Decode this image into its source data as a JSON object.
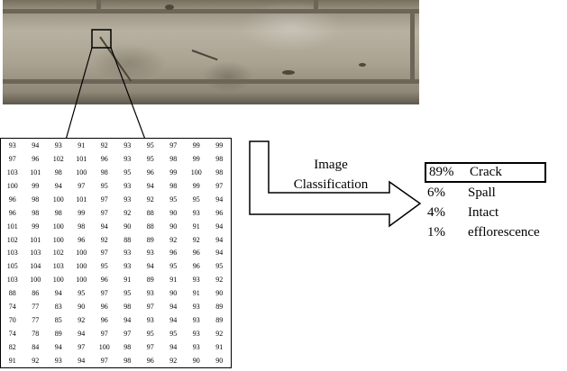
{
  "diagram": {
    "arrow_label": [
      "Image",
      "Classification"
    ],
    "results": [
      {
        "percent": "89%",
        "label": "Crack",
        "highlighted": true
      },
      {
        "percent": "6%",
        "label": "Spall",
        "highlighted": false
      },
      {
        "percent": "4%",
        "label": "Intact",
        "highlighted": false
      },
      {
        "percent": "1%",
        "label": "efflorescence",
        "highlighted": false
      }
    ],
    "pixel_grid": [
      [
        93,
        94,
        93,
        91,
        92,
        93,
        95,
        97,
        99,
        99
      ],
      [
        97,
        96,
        102,
        101,
        96,
        93,
        95,
        98,
        99,
        98
      ],
      [
        103,
        101,
        98,
        100,
        98,
        95,
        96,
        99,
        100,
        98
      ],
      [
        100,
        99,
        94,
        97,
        95,
        93,
        94,
        98,
        99,
        97
      ],
      [
        96,
        98,
        100,
        101,
        97,
        93,
        92,
        95,
        95,
        94
      ],
      [
        96,
        98,
        98,
        99,
        97,
        92,
        88,
        90,
        93,
        96
      ],
      [
        101,
        99,
        100,
        98,
        94,
        90,
        88,
        90,
        91,
        94
      ],
      [
        102,
        101,
        100,
        96,
        92,
        88,
        89,
        92,
        92,
        94
      ],
      [
        103,
        103,
        102,
        100,
        97,
        93,
        93,
        96,
        96,
        94
      ],
      [
        105,
        104,
        103,
        100,
        95,
        93,
        94,
        95,
        96,
        95
      ],
      [
        103,
        100,
        100,
        100,
        96,
        91,
        89,
        91,
        93,
        92
      ],
      [
        88,
        86,
        94,
        95,
        97,
        95,
        93,
        90,
        91,
        90
      ],
      [
        74,
        77,
        83,
        90,
        96,
        98,
        97,
        94,
        93,
        89
      ],
      [
        70,
        77,
        85,
        92,
        96,
        94,
        93,
        94,
        93,
        89
      ],
      [
        74,
        78,
        89,
        94,
        97,
        97,
        95,
        95,
        93,
        92
      ],
      [
        82,
        84,
        94,
        97,
        100,
        98,
        97,
        94,
        93,
        91
      ],
      [
        91,
        92,
        93,
        94,
        97,
        98,
        96,
        92,
        90,
        90
      ]
    ]
  }
}
